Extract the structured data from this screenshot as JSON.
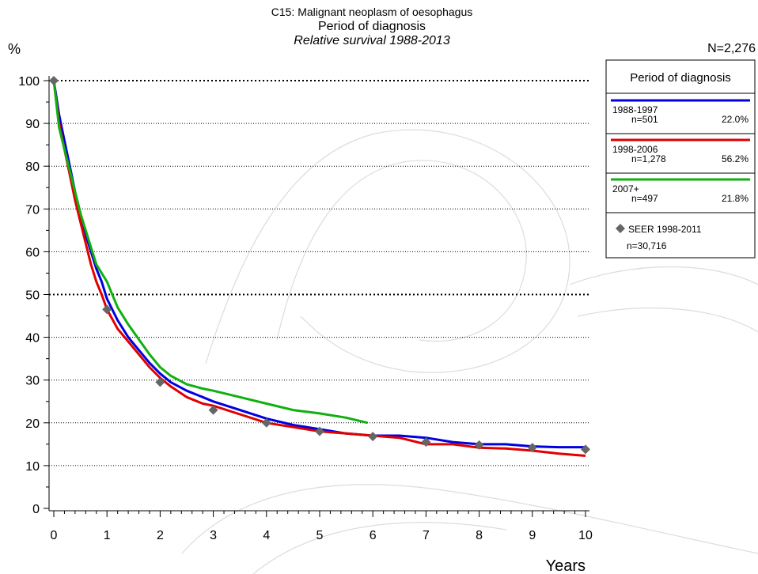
{
  "chart_data": {
    "type": "line",
    "title": "C15: Malignant neoplasm of oesophagus",
    "subtitle": "Period of diagnosis",
    "subtitle2": "Relative survival 1988-2013",
    "ylabel": "%",
    "xlabel": "Years",
    "total_n": "N=2,276",
    "xlim": [
      0,
      10
    ],
    "ylim": [
      0,
      100
    ],
    "x_ticks": [
      "0",
      "1",
      "2",
      "3",
      "4",
      "5",
      "6",
      "7",
      "8",
      "9",
      "10"
    ],
    "y_ticks": [
      "0",
      "10",
      "20",
      "30",
      "40",
      "50",
      "60",
      "70",
      "80",
      "90",
      "100"
    ],
    "legend": {
      "title": "Period of diagnosis",
      "placement": "top-right",
      "entries": [
        {
          "label": "1988-1997",
          "n": "n=501",
          "pct": "22.0%",
          "color": "#0000e0"
        },
        {
          "label": "1998-2006",
          "n": "n=1,278",
          "pct": "56.2%",
          "color": "#e00000"
        },
        {
          "label": "2007+",
          "n": "n=497",
          "pct": "21.8%",
          "color": "#10b010"
        }
      ],
      "marker_label": "SEER 1998-2011",
      "marker_n": "n=30,716"
    },
    "series": [
      {
        "name": "1988-1997",
        "color": "#0000e0",
        "x": [
          0,
          0.1,
          0.2,
          0.3,
          0.4,
          0.5,
          0.6,
          0.7,
          0.8,
          0.9,
          1.0,
          1.2,
          1.4,
          1.6,
          1.8,
          2.0,
          2.2,
          2.5,
          2.8,
          3.0,
          3.5,
          4.0,
          4.5,
          5.0,
          5.5,
          6.0,
          6.5,
          7.0,
          7.5,
          8.0,
          8.5,
          9.0,
          9.5,
          10.0
        ],
        "y": [
          100,
          92,
          86,
          80,
          74,
          69,
          64,
          60,
          56,
          53,
          49,
          44,
          40,
          37,
          34,
          31.5,
          29.5,
          27.5,
          26,
          25,
          23,
          21,
          19.5,
          18.5,
          17.5,
          17,
          17,
          16.5,
          15.5,
          15,
          15,
          14.5,
          14.3,
          14.3
        ]
      },
      {
        "name": "1998-2006",
        "color": "#e00000",
        "x": [
          0,
          0.1,
          0.2,
          0.3,
          0.4,
          0.5,
          0.6,
          0.7,
          0.8,
          0.9,
          1.0,
          1.2,
          1.4,
          1.6,
          1.8,
          2.0,
          2.2,
          2.5,
          2.8,
          3.0,
          3.5,
          4.0,
          4.5,
          5.0,
          5.5,
          6.0,
          6.5,
          7.0,
          7.5,
          8.0,
          8.5,
          9.0,
          9.5,
          10.0
        ],
        "y": [
          100,
          90,
          84,
          78,
          72,
          67,
          62,
          57,
          53,
          50,
          46.5,
          42,
          39,
          36,
          33,
          30.5,
          28.5,
          26,
          24.5,
          24,
          22,
          20,
          19,
          18,
          17.5,
          17,
          16.5,
          15,
          15,
          14.2,
          14,
          13.5,
          12.8,
          12.3
        ]
      },
      {
        "name": "2007+",
        "color": "#10b010",
        "x": [
          0,
          0.1,
          0.2,
          0.3,
          0.4,
          0.5,
          0.6,
          0.7,
          0.8,
          0.9,
          1.0,
          1.2,
          1.4,
          1.6,
          1.8,
          2.0,
          2.2,
          2.5,
          2.8,
          3.0,
          3.5,
          4.0,
          4.5,
          5.0,
          5.5,
          5.9
        ],
        "y": [
          100,
          89,
          84,
          79,
          74,
          69,
          65,
          61,
          57,
          55,
          53,
          47,
          43,
          39.5,
          36,
          33,
          31,
          29,
          28,
          27.5,
          26,
          24.5,
          23,
          22.2,
          21.2,
          20
        ]
      },
      {
        "name": "SEER 1998-2011",
        "color": "#666666",
        "marker": "diamond",
        "x": [
          0,
          1,
          2,
          3,
          4,
          5,
          6,
          7,
          8,
          9,
          10
        ],
        "y": [
          100,
          46.5,
          29.5,
          23,
          20,
          18,
          16.8,
          15.5,
          14.8,
          14.2,
          13.8
        ]
      }
    ]
  }
}
